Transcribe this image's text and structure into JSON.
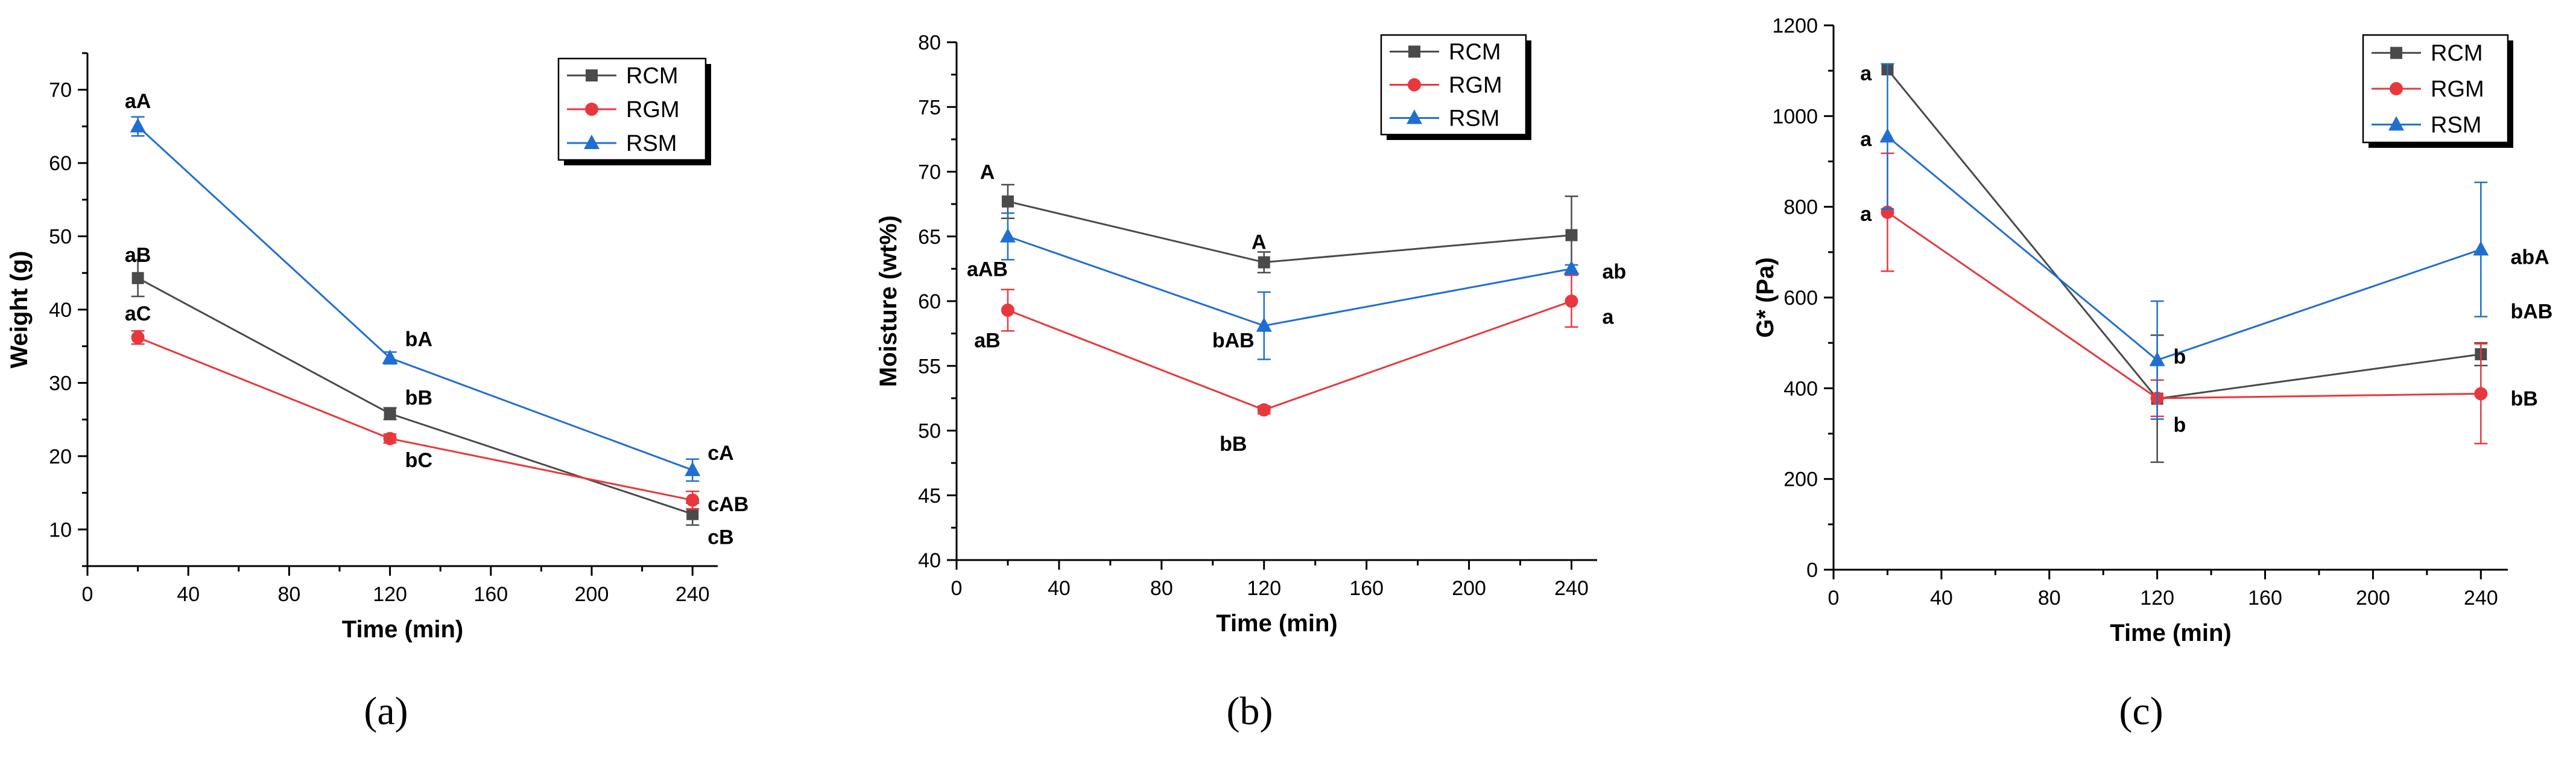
{
  "figure": {
    "panel_labels": [
      "(a)",
      "(b)",
      "(c)"
    ]
  },
  "chart_data": [
    {
      "type": "line",
      "panel": "(a)",
      "title": "",
      "xlabel": "Time (min)",
      "ylabel": "Weight (g)",
      "xlim": [
        0,
        250
      ],
      "ylim": [
        5,
        75
      ],
      "xticks": [
        0,
        40,
        80,
        120,
        160,
        200,
        240
      ],
      "yticks": [
        10,
        20,
        30,
        40,
        50,
        60,
        70
      ],
      "x": [
        20,
        120,
        240
      ],
      "legend": {
        "position": "top-right"
      },
      "series": [
        {
          "name": "RCM",
          "color": "#4a4a4a",
          "marker": "square",
          "values": [
            44.3,
            25.8,
            12.1
          ],
          "errors": [
            2.5,
            0.8,
            1.5
          ]
        },
        {
          "name": "RGM",
          "color": "#e8383d",
          "marker": "circle",
          "values": [
            36.2,
            22.4,
            14.0
          ],
          "errors": [
            0.9,
            0.6,
            1.2
          ]
        },
        {
          "name": "RSM",
          "color": "#1f6fd1",
          "marker": "triangle",
          "values": [
            65.0,
            33.4,
            18.1
          ],
          "errors": [
            1.3,
            0.8,
            1.5
          ]
        }
      ],
      "annotations": [
        {
          "text": "aA",
          "x": 20,
          "y": 68.5,
          "anchor": "middle"
        },
        {
          "text": "aB",
          "x": 20,
          "y": 47.5,
          "anchor": "middle"
        },
        {
          "text": "aC",
          "x": 20,
          "y": 39.5,
          "anchor": "middle"
        },
        {
          "text": "bA",
          "x": 126,
          "y": 36.0,
          "anchor": "start"
        },
        {
          "text": "bB",
          "x": 126,
          "y": 28.0,
          "anchor": "start"
        },
        {
          "text": "bC",
          "x": 126,
          "y": 19.5,
          "anchor": "start"
        },
        {
          "text": "cA",
          "x": 246,
          "y": 20.5,
          "anchor": "start"
        },
        {
          "text": "cAB",
          "x": 246,
          "y": 13.5,
          "anchor": "start"
        },
        {
          "text": "cB",
          "x": 246,
          "y": 9.0,
          "anchor": "start"
        }
      ]
    },
    {
      "type": "line",
      "panel": "(b)",
      "title": "",
      "xlabel": "Time (min)",
      "ylabel": "Moisture (wt%)",
      "xlim": [
        0,
        250
      ],
      "ylim": [
        40,
        80
      ],
      "xticks": [
        0,
        40,
        80,
        120,
        160,
        200,
        240
      ],
      "yticks": [
        40,
        45,
        50,
        55,
        60,
        65,
        70,
        75,
        80
      ],
      "x": [
        20,
        120,
        240
      ],
      "legend": {
        "position": "top-right"
      },
      "series": [
        {
          "name": "RCM",
          "color": "#4a4a4a",
          "marker": "square",
          "values": [
            67.7,
            63.0,
            65.1
          ],
          "errors": [
            1.3,
            0.8,
            3.0
          ]
        },
        {
          "name": "RGM",
          "color": "#e8383d",
          "marker": "circle",
          "values": [
            59.3,
            51.6,
            60.0
          ],
          "errors": [
            1.6,
            0.3,
            2.0
          ]
        },
        {
          "name": "RSM",
          "color": "#1f6fd1",
          "marker": "triangle",
          "values": [
            65.0,
            58.1,
            62.5
          ],
          "errors": [
            1.8,
            2.6,
            0.3
          ]
        }
      ],
      "annotations": [
        {
          "text": "A",
          "x": 12,
          "y": 70.0,
          "anchor": "middle"
        },
        {
          "text": "aAB",
          "x": 12,
          "y": 62.5,
          "anchor": "middle"
        },
        {
          "text": "aB",
          "x": 12,
          "y": 57.0,
          "anchor": "middle"
        },
        {
          "text": "A",
          "x": 118,
          "y": 64.6,
          "anchor": "middle"
        },
        {
          "text": "bAB",
          "x": 108,
          "y": 57.0,
          "anchor": "middle"
        },
        {
          "text": "bB",
          "x": 108,
          "y": 49.0,
          "anchor": "middle"
        },
        {
          "text": "ab",
          "x": 252,
          "y": 62.3,
          "anchor": "start"
        },
        {
          "text": "a",
          "x": 252,
          "y": 58.8,
          "anchor": "start"
        }
      ]
    },
    {
      "type": "line",
      "panel": "(c)",
      "title": "",
      "xlabel": "Time (min)",
      "ylabel": "G* (Pa)",
      "xlim": [
        0,
        250
      ],
      "ylim": [
        0,
        1200
      ],
      "xticks": [
        0,
        40,
        80,
        120,
        160,
        200,
        240
      ],
      "yticks": [
        0,
        200,
        400,
        600,
        800,
        1000,
        1200
      ],
      "x": [
        20,
        120,
        240
      ],
      "legend": {
        "position": "top-right"
      },
      "series": [
        {
          "name": "RCM",
          "color": "#4a4a4a",
          "marker": "square",
          "values": [
            1103,
            377,
            475
          ],
          "errors": [
            0,
            140,
            25
          ]
        },
        {
          "name": "RGM",
          "color": "#e8383d",
          "marker": "circle",
          "values": [
            788,
            378,
            388
          ],
          "errors": [
            130,
            40,
            110
          ]
        },
        {
          "name": "RSM",
          "color": "#1f6fd1",
          "marker": "triangle",
          "values": [
            955,
            462,
            706
          ],
          "errors": [
            160,
            130,
            148
          ]
        }
      ],
      "annotations": [
        {
          "text": "a",
          "x": 12,
          "y": 1095,
          "anchor": "middle"
        },
        {
          "text": "a",
          "x": 12,
          "y": 950,
          "anchor": "middle"
        },
        {
          "text": "a",
          "x": 12,
          "y": 785,
          "anchor": "middle"
        },
        {
          "text": "b",
          "x": 126,
          "y": 470,
          "anchor": "start"
        },
        {
          "text": "b",
          "x": 126,
          "y": 320,
          "anchor": "start"
        },
        {
          "text": "abA",
          "x": 251,
          "y": 690,
          "anchor": "start"
        },
        {
          "text": "bAB",
          "x": 251,
          "y": 570,
          "anchor": "start"
        },
        {
          "text": "bB",
          "x": 251,
          "y": 378,
          "anchor": "start"
        }
      ]
    }
  ]
}
